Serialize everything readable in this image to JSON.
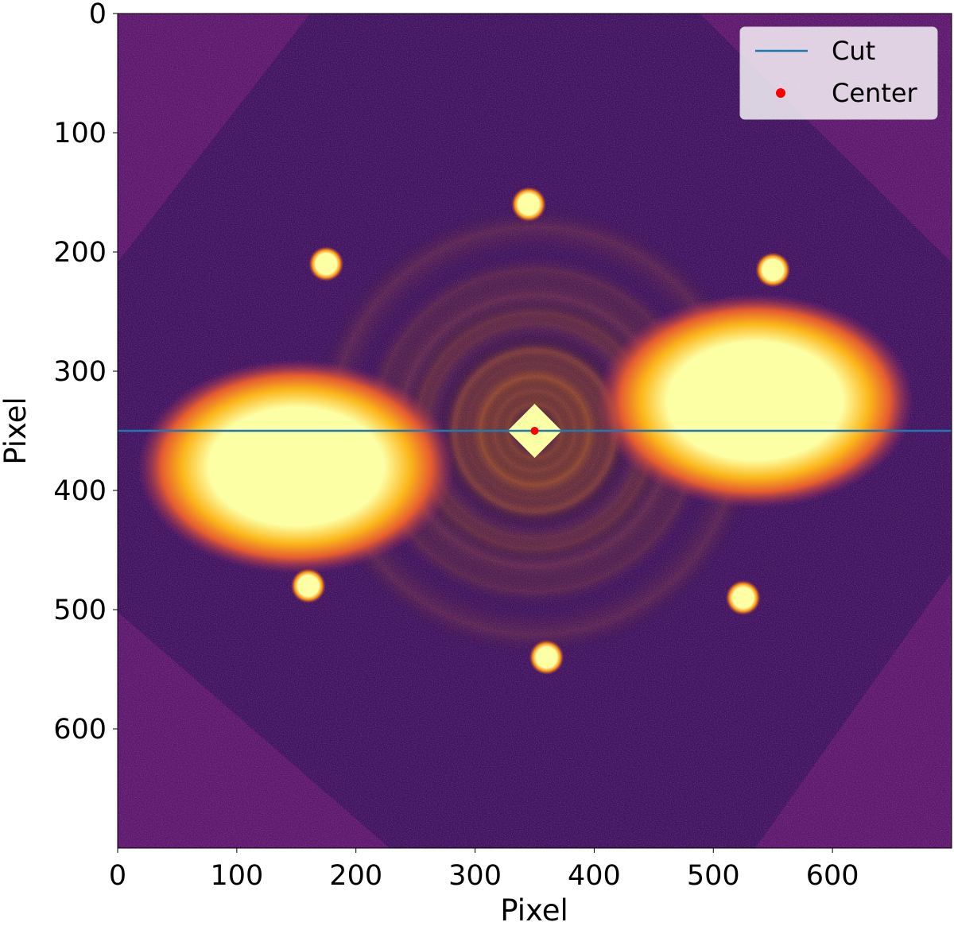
{
  "chart_data": {
    "type": "heatmap",
    "title": "",
    "xlabel": "Pixel",
    "ylabel": "Pixel",
    "xlim": [
      0,
      700
    ],
    "ylim": [
      700,
      0
    ],
    "x_ticks": [
      0,
      100,
      200,
      300,
      400,
      500,
      600
    ],
    "y_ticks": [
      0,
      100,
      200,
      300,
      400,
      500,
      600
    ],
    "colormap": "inferno",
    "colors": {
      "background": "#5a176e",
      "cut_line": "#1f77b4",
      "center_marker": "#ff0000",
      "saturated": "#fcffa4"
    },
    "legend": {
      "placement": "top-right",
      "entries": [
        {
          "label": "Cut",
          "kind": "line",
          "color": "#1f77b4"
        },
        {
          "label": "Center",
          "kind": "marker",
          "color": "#ff0000"
        }
      ]
    },
    "series": [
      {
        "name": "Cut",
        "kind": "hline",
        "y": 350
      },
      {
        "name": "Center",
        "kind": "point",
        "x": 350,
        "y": 350
      }
    ],
    "features": [
      {
        "kind": "halo",
        "x": 150,
        "y": 380
      },
      {
        "kind": "halo",
        "x": 535,
        "y": 325
      },
      {
        "kind": "spot",
        "x": 345,
        "y": 160
      },
      {
        "kind": "spot",
        "x": 360,
        "y": 540
      },
      {
        "kind": "spot",
        "x": 175,
        "y": 210
      },
      {
        "kind": "spot",
        "x": 525,
        "y": 490
      },
      {
        "kind": "spot",
        "x": 550,
        "y": 215
      },
      {
        "kind": "spot",
        "x": 160,
        "y": 480
      }
    ]
  }
}
